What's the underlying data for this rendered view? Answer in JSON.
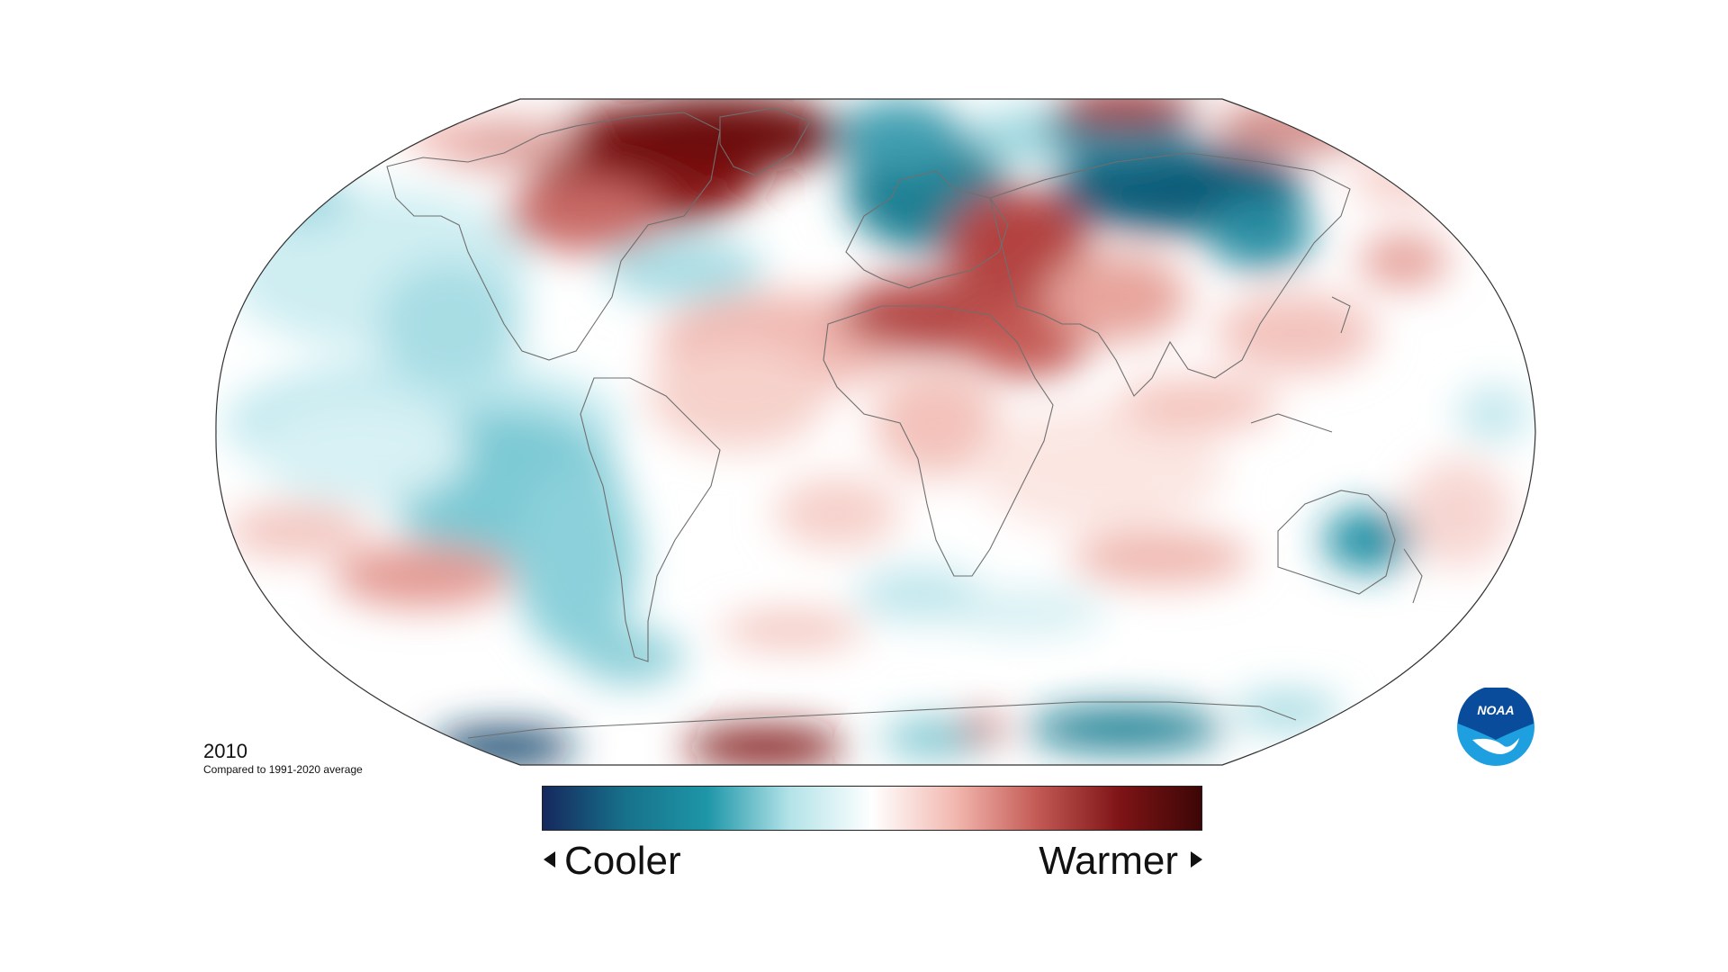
{
  "map": {
    "year": "2010",
    "baseline_note": "Compared to 1991-2020 average",
    "projection": "robinson",
    "colorscale": {
      "stops": [
        "#15285e",
        "#17718a",
        "#1e96a8",
        "#b3e3e8",
        "#ffffff",
        "#f2b8b0",
        "#c45a55",
        "#7e1416",
        "#3d0606"
      ],
      "low_label": "Cooler",
      "high_label": "Warmer",
      "low_icon": "arrow-left-icon",
      "high_icon": "arrow-right-icon"
    }
  },
  "logo": {
    "text": "NOAA",
    "colors": {
      "primary": "#0a4c9c",
      "accent": "#1ea0e0"
    }
  }
}
